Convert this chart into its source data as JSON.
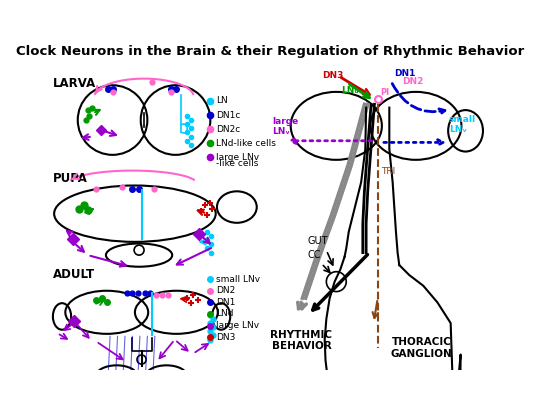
{
  "title": "Clock Neurons in the Brain & their Regulation of Rhythmic Behavior",
  "bg_color": "#ffffff",
  "larva_legend": [
    {
      "label": "LN",
      "color": "#00ccff"
    },
    {
      "label": "DN1c",
      "color": "#0000cc"
    },
    {
      "label": "DN2c",
      "color": "#ff66cc"
    },
    {
      "label": "LNd-like cells",
      "color": "#009900"
    },
    {
      "label": "large LNv\n-like cells",
      "color": "#9900cc"
    }
  ],
  "adult_legend": [
    {
      "label": "small LNv",
      "color": "#00ccff"
    },
    {
      "label": "DN2",
      "color": "#ff66cc"
    },
    {
      "label": "DN1",
      "color": "#0000cc"
    },
    {
      "label": "LNd",
      "color": "#009900"
    },
    {
      "label": "large LNv",
      "color": "#9900cc"
    },
    {
      "label": "DN3",
      "color": "#cc0000"
    }
  ]
}
